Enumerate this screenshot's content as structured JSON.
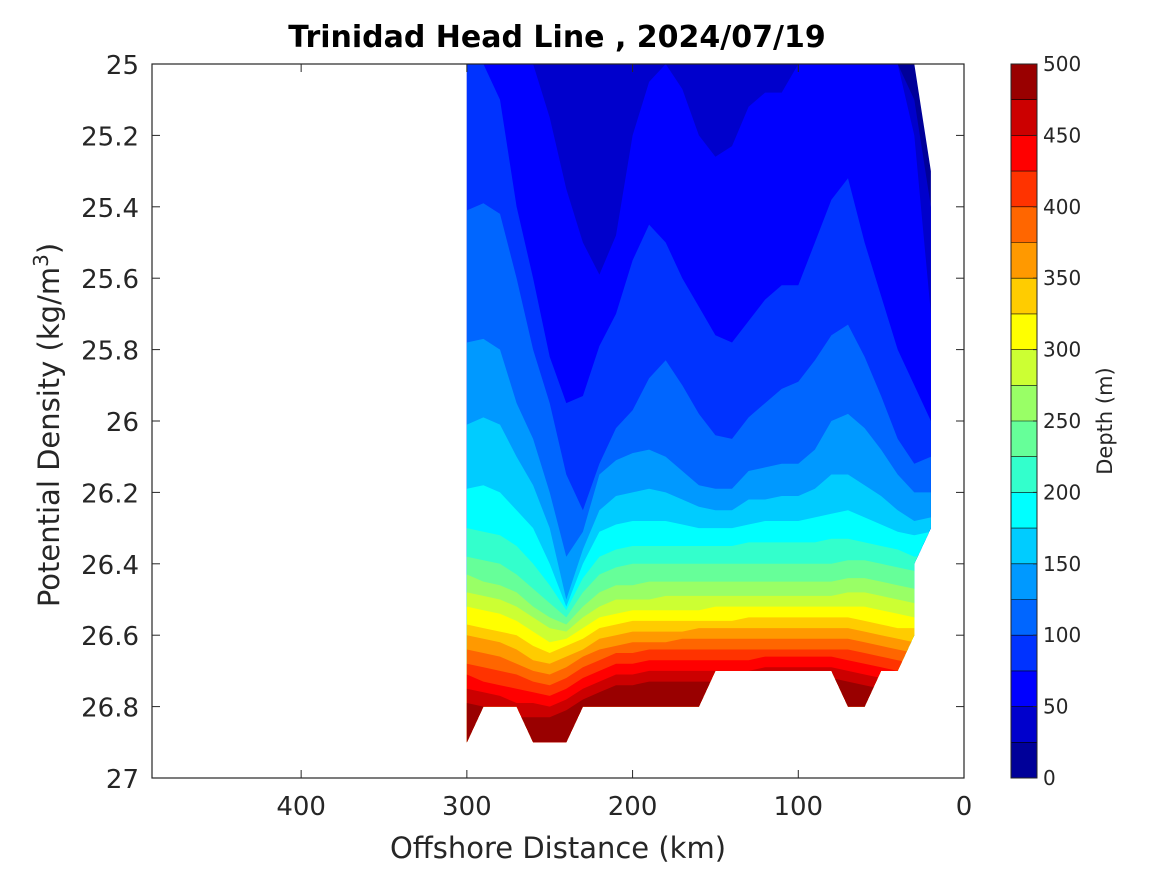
{
  "chart_data": {
    "type": "contour",
    "title": "Trinidad Head Line , 2024/07/19",
    "xlabel": "Offshore Distance (km)",
    "ylabel_main": "Potential Density (kg/m",
    "ylabel_sup": "3",
    "ylabel_end": ")",
    "x_reversed": true,
    "y_reversed": true,
    "xlim": [
      490,
      0
    ],
    "ylim": [
      25.0,
      27.0
    ],
    "xticks": [
      400,
      300,
      200,
      100,
      0
    ],
    "yticks": [
      25,
      25.2,
      25.4,
      25.6,
      25.8,
      26,
      26.2,
      26.4,
      26.6,
      26.8,
      27
    ],
    "ytick_labels": [
      "25",
      "25.2",
      "25.4",
      "25.6",
      "25.8",
      "26",
      "26.2",
      "26.4",
      "26.6",
      "26.8",
      "27"
    ],
    "colorbar": {
      "label": "Depth (m)",
      "range": [
        0,
        500
      ],
      "level_step": 25,
      "ticks": [
        0,
        50,
        100,
        150,
        200,
        250,
        300,
        350,
        400,
        450,
        500
      ],
      "colormap": "jet"
    },
    "offshore_distance_km": [
      300,
      290,
      280,
      270,
      260,
      250,
      240,
      230,
      220,
      210,
      200,
      190,
      180,
      170,
      160,
      150,
      140,
      130,
      120,
      110,
      100,
      90,
      80,
      70,
      60,
      50,
      40,
      30,
      20
    ],
    "depth_isopleths": [
      {
        "depth_m": 25,
        "density": [
          25.0,
          25.0,
          25.0,
          25.0,
          25.0,
          25.0,
          25.0,
          25.0,
          25.0,
          25.0,
          25.0,
          25.0,
          25.0,
          25.0,
          25.0,
          25.0,
          25.0,
          25.0,
          25.0,
          25.0,
          25.0,
          25.0,
          25.0,
          25.0,
          25.0,
          25.0,
          25.0,
          25.1,
          25.4
        ]
      },
      {
        "depth_m": 50,
        "density": [
          25.0,
          25.0,
          25.0,
          25.0,
          25.0,
          25.15,
          25.35,
          25.5,
          25.59,
          25.48,
          25.2,
          25.05,
          25.0,
          25.07,
          25.2,
          25.26,
          25.23,
          25.12,
          25.08,
          25.08,
          25.0,
          25.0,
          25.0,
          25.0,
          25.0,
          25.0,
          25.0,
          25.2,
          25.7
        ]
      },
      {
        "depth_m": 75,
        "density": [
          25.0,
          25.0,
          25.1,
          25.4,
          25.6,
          25.82,
          25.95,
          25.93,
          25.79,
          25.7,
          25.55,
          25.45,
          25.5,
          25.6,
          25.68,
          25.76,
          25.78,
          25.72,
          25.66,
          25.62,
          25.62,
          25.5,
          25.38,
          25.32,
          25.5,
          25.65,
          25.8,
          25.9,
          26.0
        ]
      },
      {
        "depth_m": 100,
        "density": [
          25.41,
          25.39,
          25.42,
          25.6,
          25.8,
          25.95,
          26.15,
          26.25,
          26.12,
          26.02,
          25.97,
          25.88,
          25.83,
          25.9,
          25.98,
          26.04,
          26.05,
          25.99,
          25.95,
          25.91,
          25.89,
          25.83,
          25.76,
          25.73,
          25.82,
          25.93,
          26.05,
          26.12,
          26.1
        ]
      },
      {
        "depth_m": 125,
        "density": [
          25.78,
          25.77,
          25.8,
          25.95,
          26.05,
          26.2,
          26.38,
          26.31,
          26.15,
          26.11,
          26.09,
          26.08,
          26.1,
          26.14,
          26.18,
          26.19,
          26.19,
          26.14,
          26.13,
          26.12,
          26.12,
          26.08,
          26.0,
          25.98,
          26.02,
          26.08,
          26.15,
          26.2,
          26.2
        ]
      },
      {
        "depth_m": 150,
        "density": [
          26.01,
          25.99,
          26.01,
          26.1,
          26.18,
          26.3,
          26.5,
          26.36,
          26.25,
          26.21,
          26.2,
          26.19,
          26.2,
          26.22,
          26.24,
          26.25,
          26.25,
          26.22,
          26.22,
          26.21,
          26.21,
          26.19,
          26.15,
          26.15,
          26.18,
          26.21,
          26.25,
          26.28,
          26.27
        ]
      },
      {
        "depth_m": 175,
        "density": [
          26.19,
          26.18,
          26.2,
          26.25,
          26.3,
          26.4,
          26.52,
          26.4,
          26.31,
          26.29,
          26.28,
          26.28,
          26.28,
          26.29,
          26.3,
          26.3,
          26.3,
          26.29,
          26.28,
          26.28,
          26.28,
          26.27,
          26.26,
          26.25,
          26.27,
          26.29,
          26.31,
          26.32,
          26.31
        ]
      },
      {
        "depth_m": 200,
        "density": [
          26.3,
          26.31,
          26.32,
          26.35,
          26.4,
          26.46,
          26.53,
          26.44,
          26.38,
          26.36,
          26.35,
          26.35,
          26.35,
          26.35,
          26.35,
          26.35,
          26.35,
          26.34,
          26.34,
          26.34,
          26.34,
          26.34,
          26.33,
          26.33,
          26.34,
          26.35,
          26.36,
          26.38,
          26.37
        ]
      },
      {
        "depth_m": 225,
        "density": [
          26.38,
          26.39,
          26.4,
          26.43,
          26.47,
          26.51,
          26.55,
          26.48,
          26.43,
          26.41,
          26.4,
          26.4,
          26.4,
          26.4,
          26.4,
          26.4,
          26.4,
          26.4,
          26.4,
          26.4,
          26.4,
          26.4,
          26.4,
          26.39,
          26.39,
          26.4,
          26.41,
          26.42,
          26.42
        ]
      },
      {
        "depth_m": 250,
        "density": [
          26.43,
          26.45,
          26.46,
          26.48,
          26.52,
          26.55,
          26.57,
          26.52,
          26.48,
          26.46,
          26.46,
          26.45,
          26.45,
          26.45,
          26.45,
          26.45,
          26.45,
          26.45,
          26.45,
          26.45,
          26.45,
          26.45,
          26.45,
          26.44,
          26.44,
          26.45,
          26.46,
          26.47,
          26.47
        ]
      },
      {
        "depth_m": 275,
        "density": [
          26.48,
          26.49,
          26.5,
          26.52,
          26.55,
          26.58,
          26.59,
          26.55,
          26.52,
          26.5,
          26.5,
          26.5,
          26.49,
          26.49,
          26.49,
          26.49,
          26.49,
          26.49,
          26.49,
          26.49,
          26.49,
          26.49,
          26.49,
          26.48,
          26.48,
          26.49,
          26.5,
          26.51,
          26.51
        ]
      },
      {
        "depth_m": 300,
        "density": [
          26.52,
          26.53,
          26.54,
          26.56,
          26.59,
          26.62,
          26.61,
          26.58,
          26.55,
          26.54,
          26.53,
          26.53,
          26.53,
          26.53,
          26.53,
          26.52,
          26.52,
          26.52,
          26.52,
          26.52,
          26.52,
          26.52,
          26.52,
          26.52,
          26.52,
          26.53,
          26.54,
          26.55,
          26.55
        ]
      },
      {
        "depth_m": 325,
        "density": [
          26.57,
          26.58,
          26.59,
          26.6,
          26.63,
          26.65,
          26.63,
          26.61,
          26.58,
          26.57,
          26.56,
          26.56,
          26.56,
          26.56,
          26.56,
          26.56,
          26.56,
          26.55,
          26.55,
          26.55,
          26.55,
          26.55,
          26.55,
          26.55,
          26.56,
          26.57,
          26.58,
          26.58,
          26.58
        ]
      },
      {
        "depth_m": 350,
        "density": [
          26.6,
          26.61,
          26.62,
          26.64,
          26.67,
          26.68,
          26.66,
          26.64,
          26.61,
          26.6,
          26.59,
          26.59,
          26.59,
          26.59,
          26.58,
          26.58,
          26.58,
          26.58,
          26.58,
          26.58,
          26.58,
          26.58,
          26.58,
          26.58,
          26.59,
          26.6,
          26.61,
          26.62,
          26.62
        ]
      },
      {
        "depth_m": 375,
        "density": [
          26.64,
          26.65,
          26.66,
          26.68,
          26.7,
          26.71,
          26.69,
          26.66,
          26.64,
          26.63,
          26.62,
          26.62,
          26.62,
          26.61,
          26.61,
          26.61,
          26.61,
          26.61,
          26.61,
          26.61,
          26.61,
          26.61,
          26.61,
          26.61,
          26.62,
          26.63,
          26.64,
          26.65,
          26.65
        ]
      },
      {
        "depth_m": 400,
        "density": [
          26.68,
          26.69,
          26.7,
          26.71,
          26.73,
          26.74,
          26.72,
          26.69,
          26.67,
          26.65,
          26.65,
          26.64,
          26.64,
          26.64,
          26.64,
          26.64,
          26.64,
          26.64,
          26.64,
          26.64,
          26.64,
          26.64,
          26.64,
          26.64,
          26.65,
          26.66,
          26.67,
          26.68,
          26.68
        ]
      },
      {
        "depth_m": 425,
        "density": [
          26.71,
          26.73,
          26.74,
          26.75,
          26.76,
          26.77,
          26.75,
          26.72,
          26.7,
          26.68,
          26.68,
          26.67,
          26.67,
          26.67,
          26.67,
          26.67,
          26.67,
          26.67,
          26.66,
          26.66,
          26.66,
          26.66,
          26.66,
          26.67,
          26.68,
          26.69,
          26.7,
          26.71,
          26.71
        ]
      },
      {
        "depth_m": 450,
        "density": [
          26.75,
          26.76,
          26.77,
          26.79,
          26.79,
          26.8,
          26.78,
          26.75,
          26.73,
          26.71,
          26.71,
          26.7,
          26.7,
          26.7,
          26.7,
          26.7,
          26.7,
          26.7,
          26.69,
          26.69,
          26.69,
          26.69,
          26.69,
          26.7,
          26.71,
          26.72,
          26.73,
          26.74,
          26.74
        ]
      },
      {
        "depth_m": 475,
        "density": [
          26.79,
          26.8,
          26.81,
          26.83,
          26.83,
          26.83,
          26.81,
          26.78,
          26.76,
          26.74,
          26.74,
          26.73,
          26.73,
          26.73,
          26.73,
          26.73,
          26.73,
          26.73,
          26.72,
          26.72,
          26.72,
          26.72,
          26.72,
          26.73,
          26.74,
          26.75,
          26.76,
          26.77,
          26.77
        ]
      }
    ],
    "data_boundary": {
      "offshore_distance_km": [
        300,
        300,
        30,
        20,
        20,
        30,
        30,
        40,
        50,
        60,
        70,
        80,
        140,
        150,
        160,
        230,
        240,
        250,
        260,
        270,
        280,
        290,
        300
      ],
      "density": [
        26.9,
        25.0,
        25.0,
        25.3,
        26.3,
        26.4,
        26.6,
        26.7,
        26.7,
        26.8,
        26.8,
        26.7,
        26.7,
        26.7,
        26.8,
        26.8,
        26.9,
        26.9,
        26.9,
        26.8,
        26.8,
        26.8,
        26.9
      ]
    }
  }
}
